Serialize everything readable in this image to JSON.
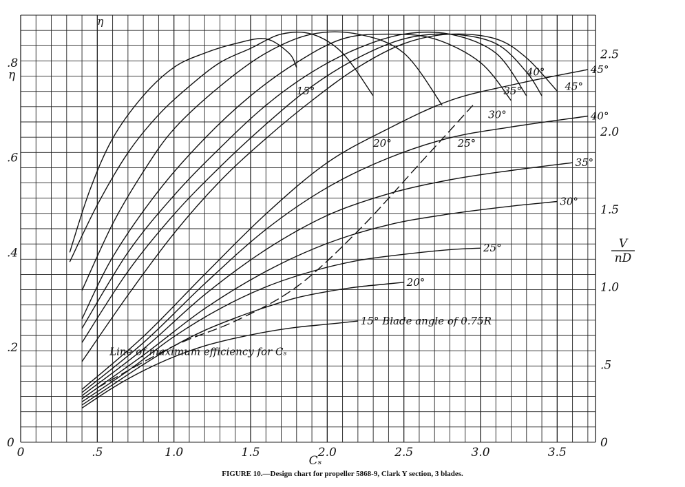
{
  "caption": "FIGURE 10.—Design chart for propeller 5868-9, Clark Y section, 3 blades.",
  "chart_data": {
    "type": "line",
    "x_axis": {
      "label": "Cₛ",
      "range": [
        0,
        3.75
      ],
      "ticks": [
        "0",
        ".5",
        "1.0",
        "1.5",
        "2.0",
        "2.5",
        "3.0",
        "3.5"
      ],
      "tick_values": [
        0,
        0.5,
        1.0,
        1.5,
        2.0,
        2.5,
        3.0,
        3.5
      ]
    },
    "y_left": {
      "label": "η",
      "range": [
        0,
        0.9
      ],
      "ticks": [
        ".8",
        ".6",
        ".4",
        ".2",
        "0"
      ],
      "tick_values": [
        0.8,
        0.6,
        0.4,
        0.2,
        0
      ]
    },
    "y_right": {
      "label_num": "V",
      "label_den": "nD",
      "range": [
        0,
        2.75
      ],
      "ticks": [
        "2.5",
        "2.0",
        "1.5",
        "1.0",
        ".5",
        "0"
      ],
      "tick_values": [
        2.5,
        2.0,
        1.5,
        1.0,
        0.5,
        0
      ]
    },
    "grid": true,
    "series_label_suffix": "Blade angle of 0.75R",
    "efficiency_label": "η",
    "max_eff_line_label": "Line of maximum efficiency for Cₛ",
    "vnd_series": [
      {
        "name": "15°",
        "x": [
          0.4,
          0.6,
          0.8,
          1.0,
          1.2,
          1.4,
          1.6,
          1.8,
          2.0,
          2.2
        ],
        "y": [
          0.22,
          0.35,
          0.46,
          0.55,
          0.62,
          0.67,
          0.71,
          0.74,
          0.76,
          0.78
        ]
      },
      {
        "name": "20°",
        "x": [
          0.4,
          0.6,
          0.8,
          1.0,
          1.2,
          1.4,
          1.6,
          1.8,
          2.0,
          2.2,
          2.4,
          2.5
        ],
        "y": [
          0.24,
          0.37,
          0.5,
          0.62,
          0.72,
          0.8,
          0.87,
          0.93,
          0.97,
          1.0,
          1.02,
          1.03
        ]
      },
      {
        "name": "25°",
        "x": [
          0.4,
          0.7,
          1.0,
          1.3,
          1.6,
          1.9,
          2.2,
          2.5,
          2.8,
          3.0
        ],
        "y": [
          0.26,
          0.46,
          0.68,
          0.86,
          1.0,
          1.1,
          1.17,
          1.21,
          1.24,
          1.25
        ]
      },
      {
        "name": "30°",
        "x": [
          0.4,
          0.8,
          1.2,
          1.6,
          2.0,
          2.4,
          2.8,
          3.2,
          3.5
        ],
        "y": [
          0.28,
          0.56,
          0.86,
          1.1,
          1.28,
          1.4,
          1.47,
          1.52,
          1.55
        ]
      },
      {
        "name": "35°",
        "x": [
          0.4,
          0.8,
          1.2,
          1.6,
          2.0,
          2.4,
          2.8,
          3.2,
          3.6
        ],
        "y": [
          0.3,
          0.6,
          0.95,
          1.24,
          1.46,
          1.6,
          1.69,
          1.75,
          1.8
        ]
      },
      {
        "name": "40°",
        "x": [
          0.4,
          0.8,
          1.2,
          1.6,
          2.0,
          2.4,
          2.8,
          3.2,
          3.7
        ],
        "y": [
          0.32,
          0.64,
          1.02,
          1.37,
          1.64,
          1.83,
          1.96,
          2.03,
          2.1
        ]
      },
      {
        "name": "45°",
        "x": [
          0.4,
          0.8,
          1.2,
          1.6,
          2.0,
          2.4,
          2.8,
          3.2,
          3.7
        ],
        "y": [
          0.34,
          0.68,
          1.08,
          1.47,
          1.8,
          2.02,
          2.2,
          2.3,
          2.4
        ]
      }
    ],
    "vnd_label_positions": [
      {
        "name": "15°",
        "x": 2.2
      },
      {
        "name": "20°",
        "x": 2.5
      },
      {
        "name": "25°",
        "x": 3.0
      },
      {
        "name": "30°",
        "x": 3.5
      },
      {
        "name": "35°",
        "x": 3.6
      },
      {
        "name": "40°",
        "x": 3.7
      },
      {
        "name": "45°",
        "x": 3.7
      }
    ],
    "eta_series": [
      {
        "name": "15°",
        "x": [
          0.32,
          0.45,
          0.6,
          0.8,
          1.0,
          1.2,
          1.4,
          1.6,
          1.75,
          1.8
        ],
        "y": [
          0.4,
          0.53,
          0.64,
          0.73,
          0.79,
          0.82,
          0.84,
          0.85,
          0.82,
          0.79
        ]
      },
      {
        "name": "20°",
        "x": [
          0.32,
          0.5,
          0.7,
          0.9,
          1.1,
          1.3,
          1.5,
          1.7,
          1.9,
          2.1,
          2.3
        ],
        "y": [
          0.38,
          0.5,
          0.61,
          0.69,
          0.75,
          0.8,
          0.83,
          0.86,
          0.86,
          0.82,
          0.73
        ]
      },
      {
        "name": "25°",
        "x": [
          0.4,
          0.6,
          0.8,
          1.0,
          1.3,
          1.6,
          1.9,
          2.2,
          2.5,
          2.75
        ],
        "y": [
          0.32,
          0.46,
          0.57,
          0.66,
          0.75,
          0.82,
          0.86,
          0.86,
          0.82,
          0.71
        ]
      },
      {
        "name": "30°",
        "x": [
          0.4,
          0.6,
          0.9,
          1.2,
          1.5,
          1.8,
          2.1,
          2.4,
          2.7,
          3.0,
          3.2
        ],
        "y": [
          0.26,
          0.39,
          0.53,
          0.64,
          0.73,
          0.8,
          0.85,
          0.86,
          0.85,
          0.8,
          0.72
        ]
      },
      {
        "name": "35°",
        "x": [
          0.4,
          0.7,
          1.0,
          1.3,
          1.6,
          1.9,
          2.2,
          2.5,
          2.8,
          3.1,
          3.3
        ],
        "y": [
          0.24,
          0.4,
          0.52,
          0.62,
          0.71,
          0.78,
          0.83,
          0.86,
          0.86,
          0.82,
          0.73
        ]
      },
      {
        "name": "40°",
        "x": [
          0.4,
          0.7,
          1.0,
          1.3,
          1.6,
          1.9,
          2.2,
          2.5,
          2.8,
          3.1,
          3.3,
          3.4
        ],
        "y": [
          0.21,
          0.36,
          0.48,
          0.58,
          0.67,
          0.75,
          0.81,
          0.85,
          0.86,
          0.84,
          0.78,
          0.73
        ]
      },
      {
        "name": "45°",
        "x": [
          0.4,
          0.7,
          1.0,
          1.3,
          1.6,
          1.9,
          2.2,
          2.5,
          2.8,
          3.1,
          3.3,
          3.5
        ],
        "y": [
          0.17,
          0.31,
          0.44,
          0.55,
          0.64,
          0.72,
          0.79,
          0.84,
          0.86,
          0.85,
          0.81,
          0.74
        ]
      }
    ],
    "eta_label_positions": [
      {
        "name": "15°",
        "x": 1.8,
        "y": 0.74
      },
      {
        "name": "20°",
        "x": 2.3,
        "y": 0.63
      },
      {
        "name": "25°",
        "x": 2.85,
        "y": 0.63
      },
      {
        "name": "30°",
        "x": 3.05,
        "y": 0.69
      },
      {
        "name": "35°",
        "x": 3.15,
        "y": 0.74
      },
      {
        "name": "40°",
        "x": 3.3,
        "y": 0.78
      },
      {
        "name": "45°",
        "x": 3.55,
        "y": 0.75
      }
    ],
    "max_eff_line": {
      "x": [
        0.5,
        1.0,
        1.4,
        1.8,
        2.2,
        2.6,
        2.95
      ],
      "y": [
        0.35,
        0.62,
        0.78,
        1.0,
        1.36,
        1.79,
        2.17
      ]
    }
  }
}
